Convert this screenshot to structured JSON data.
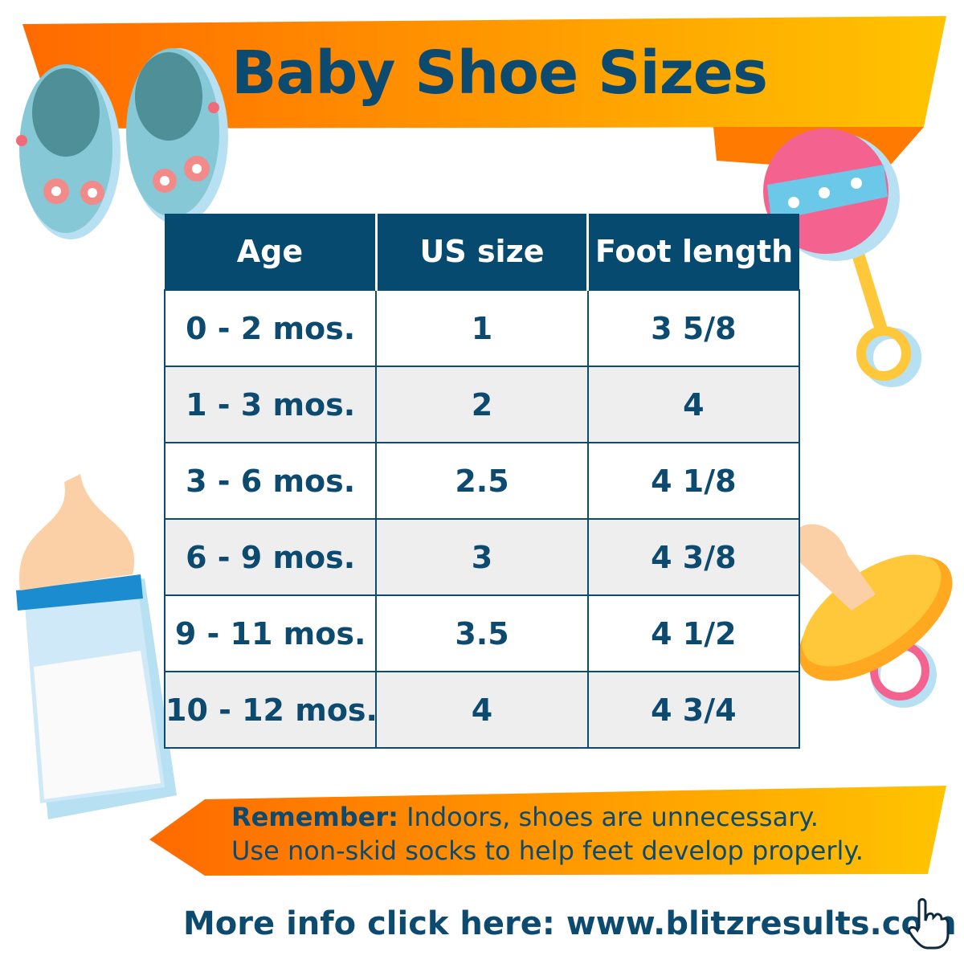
{
  "title": "Baby Shoe Sizes",
  "colors": {
    "header_bg": "#074a70",
    "text": "#0d4a70",
    "banner_start": "#ff6a00",
    "banner_end": "#ffc400",
    "alt_row": "#eeeeee"
  },
  "table": {
    "headers": [
      "Age",
      "US size",
      "Foot length"
    ],
    "rows": [
      [
        "0 - 2 mos.",
        "1",
        "3 5/8"
      ],
      [
        "1 - 3 mos.",
        "2",
        "4"
      ],
      [
        "3 - 6 mos.",
        "2.5",
        "4 1/8"
      ],
      [
        "6 - 9 mos.",
        "3",
        "4 3/8"
      ],
      [
        "9 - 11 mos.",
        "3.5",
        "4 1/2"
      ],
      [
        "10 - 12 mos.",
        "4",
        "4 3/4"
      ]
    ]
  },
  "note": {
    "label": "Remember:",
    "line1": "Indoors, shoes are unnecessary.",
    "line2": "Use non-skid socks to help feet develop properly."
  },
  "link": {
    "text": "More info click here: www.blitzresults.com",
    "icon": "pointing-hand-icon"
  },
  "decorations": [
    "baby-shoes-icon",
    "rattle-icon",
    "baby-bottle-icon",
    "pacifier-icon"
  ]
}
